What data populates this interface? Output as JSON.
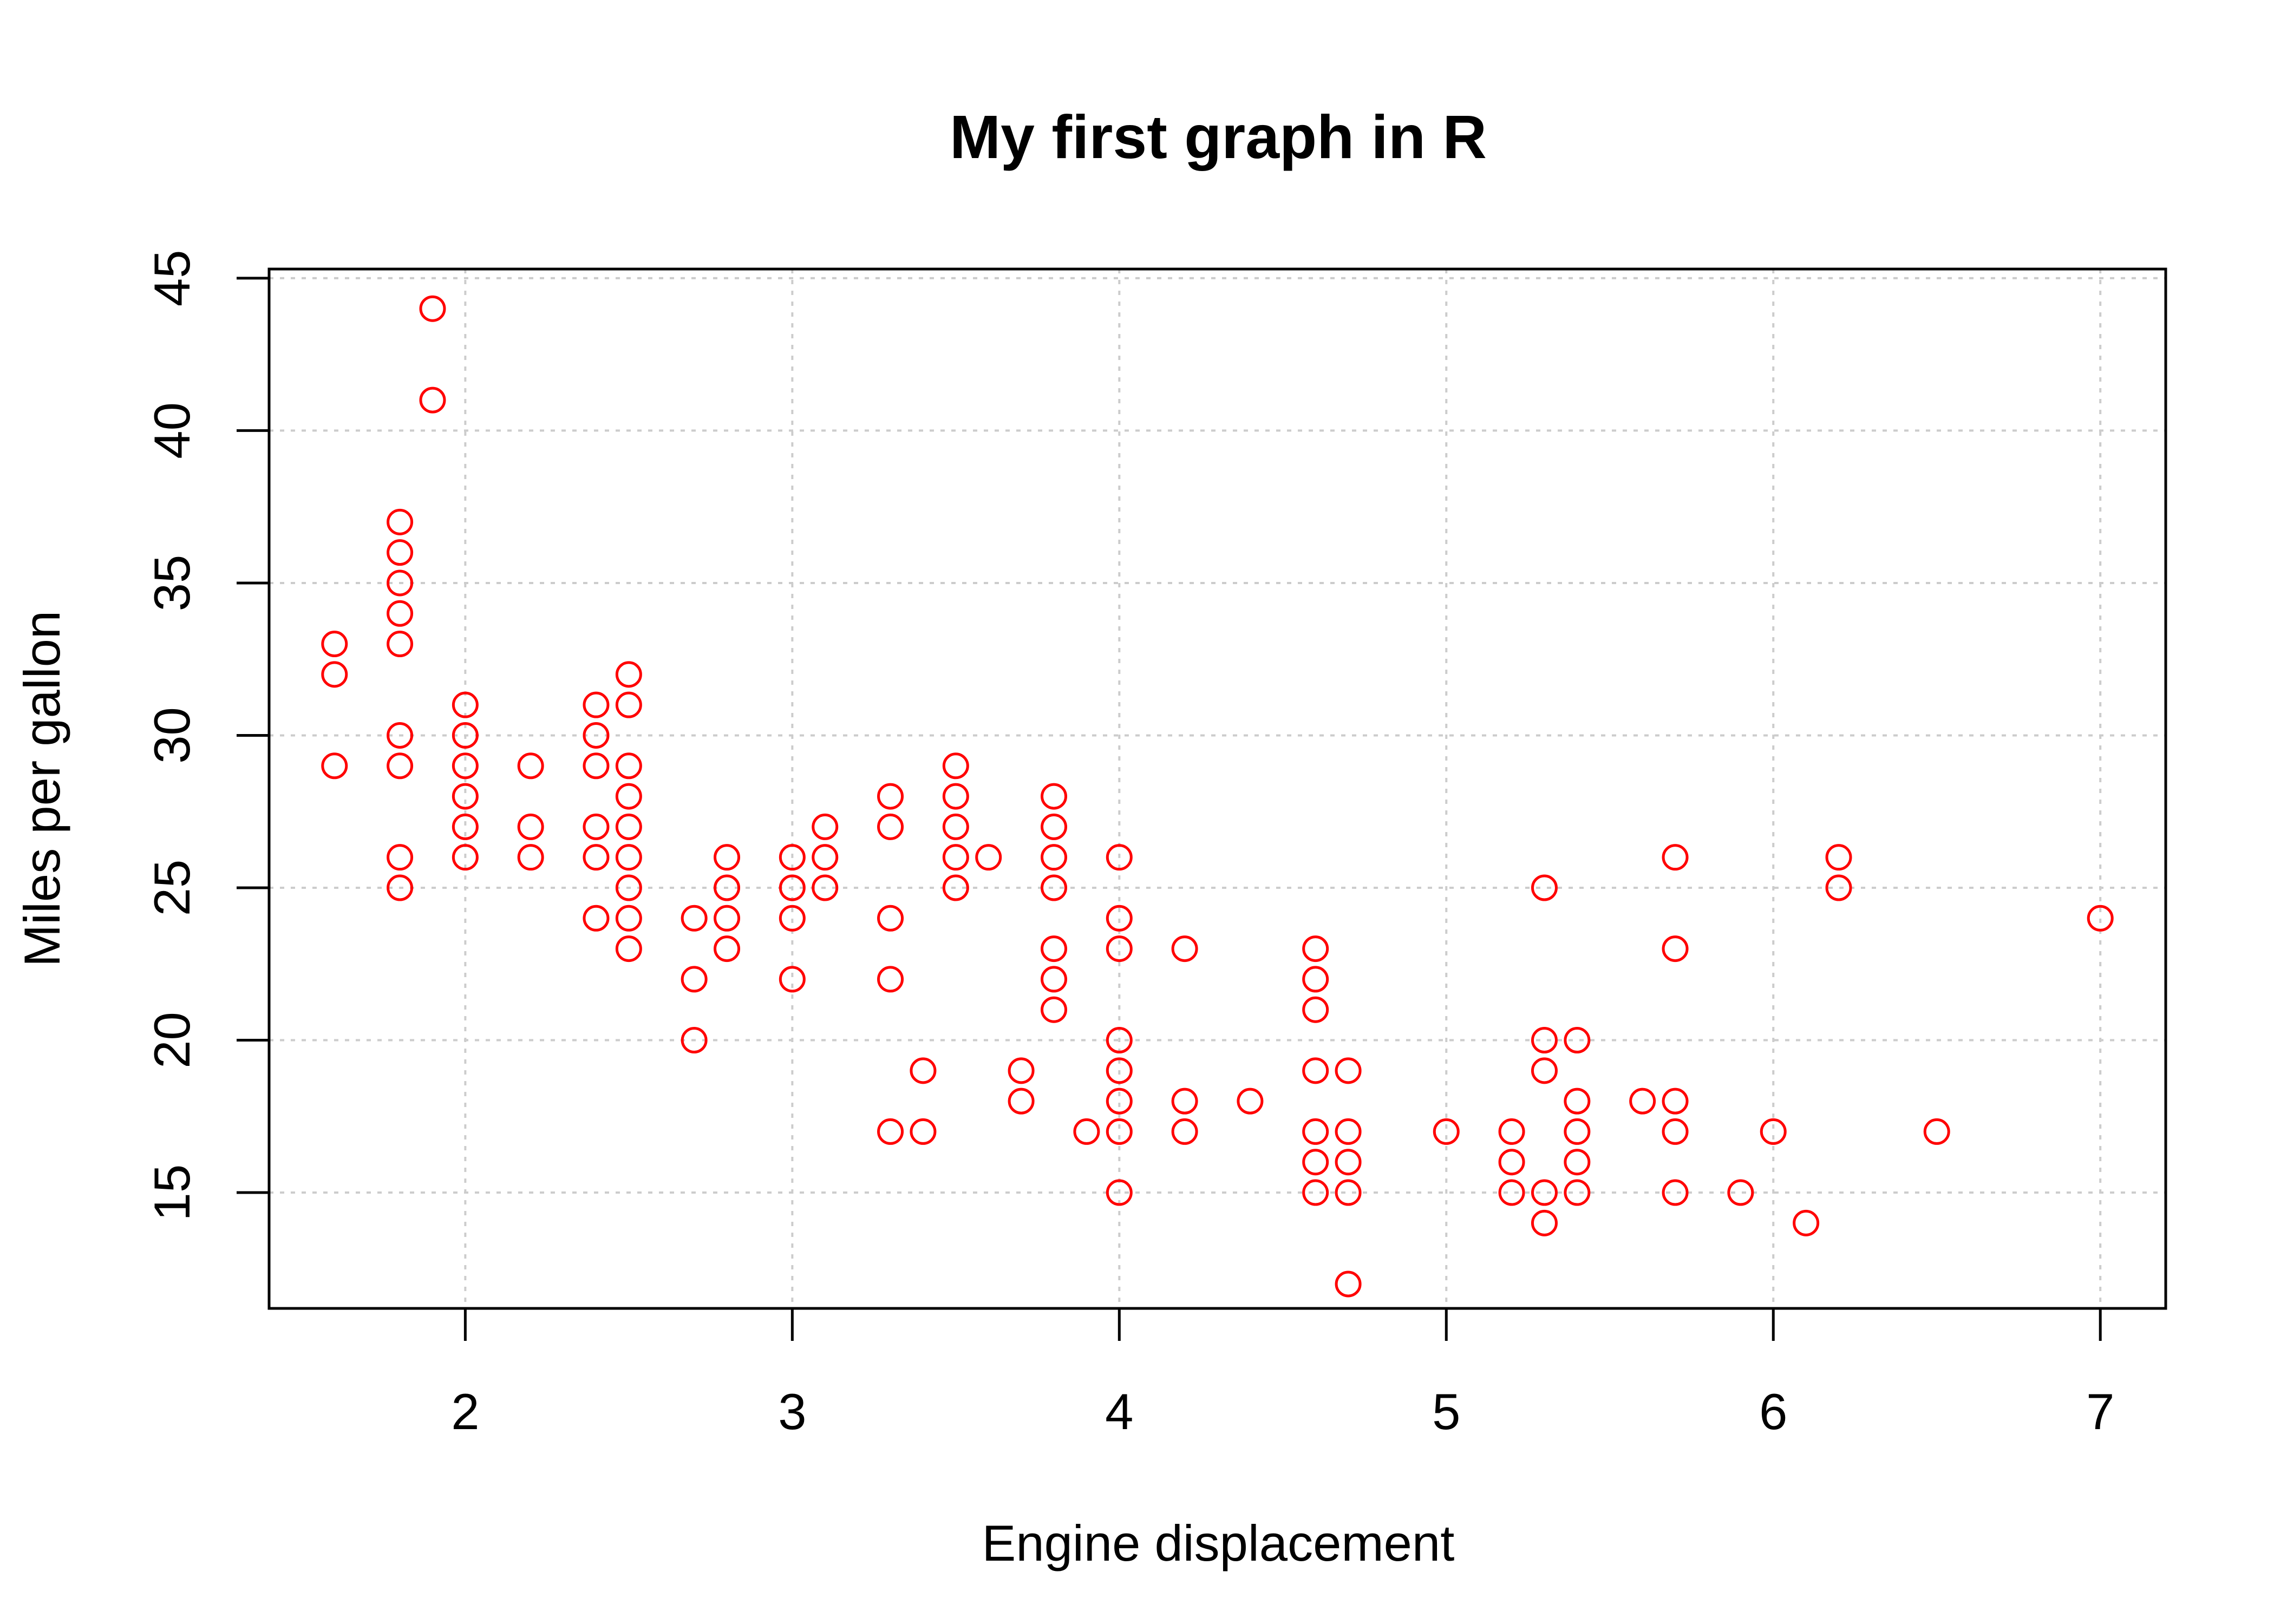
{
  "chart_data": {
    "type": "scatter",
    "title": "My first graph in R",
    "xlabel": "Engine displacement",
    "ylabel": "Miles per gallon",
    "xlim": [
      1.4,
      7.2
    ],
    "ylim": [
      11.2,
      45.3
    ],
    "x_ticks": [
      2,
      3,
      4,
      5,
      6,
      7
    ],
    "y_ticks": [
      15,
      20,
      25,
      30,
      35,
      40,
      45
    ],
    "grid": true,
    "grid_style": "dotted",
    "marker": "open-circle",
    "colors": {
      "points": "#ff0000",
      "grid": "#cccccc",
      "axes": "#000000"
    },
    "points": [
      [
        1.6,
        33
      ],
      [
        1.6,
        32
      ],
      [
        1.6,
        29
      ],
      [
        1.8,
        37
      ],
      [
        1.8,
        36
      ],
      [
        1.8,
        35
      ],
      [
        1.8,
        34
      ],
      [
        1.8,
        33
      ],
      [
        1.8,
        30
      ],
      [
        1.8,
        29
      ],
      [
        1.8,
        26
      ],
      [
        1.8,
        25
      ],
      [
        1.9,
        44
      ],
      [
        1.9,
        41
      ],
      [
        2.0,
        31
      ],
      [
        2.0,
        30
      ],
      [
        2.0,
        29
      ],
      [
        2.0,
        28
      ],
      [
        2.0,
        27
      ],
      [
        2.0,
        26
      ],
      [
        2.2,
        29
      ],
      [
        2.2,
        27
      ],
      [
        2.2,
        26
      ],
      [
        2.4,
        31
      ],
      [
        2.4,
        30
      ],
      [
        2.4,
        29
      ],
      [
        2.4,
        27
      ],
      [
        2.4,
        26
      ],
      [
        2.4,
        24
      ],
      [
        2.5,
        32
      ],
      [
        2.5,
        31
      ],
      [
        2.5,
        29
      ],
      [
        2.5,
        28
      ],
      [
        2.5,
        27
      ],
      [
        2.5,
        26
      ],
      [
        2.5,
        25
      ],
      [
        2.5,
        24
      ],
      [
        2.5,
        23
      ],
      [
        2.7,
        24
      ],
      [
        2.7,
        22
      ],
      [
        2.7,
        20
      ],
      [
        2.8,
        26
      ],
      [
        2.8,
        25
      ],
      [
        2.8,
        24
      ],
      [
        2.8,
        23
      ],
      [
        3.0,
        26
      ],
      [
        3.0,
        25
      ],
      [
        3.0,
        24
      ],
      [
        3.0,
        22
      ],
      [
        3.1,
        27
      ],
      [
        3.1,
        26
      ],
      [
        3.1,
        25
      ],
      [
        3.3,
        28
      ],
      [
        3.3,
        27
      ],
      [
        3.3,
        24
      ],
      [
        3.3,
        22
      ],
      [
        3.3,
        17
      ],
      [
        3.4,
        19
      ],
      [
        3.4,
        17
      ],
      [
        3.5,
        29
      ],
      [
        3.5,
        28
      ],
      [
        3.5,
        27
      ],
      [
        3.5,
        26
      ],
      [
        3.5,
        25
      ],
      [
        3.6,
        26
      ],
      [
        3.7,
        19
      ],
      [
        3.7,
        18
      ],
      [
        3.8,
        28
      ],
      [
        3.8,
        27
      ],
      [
        3.8,
        26
      ],
      [
        3.8,
        25
      ],
      [
        3.8,
        23
      ],
      [
        3.8,
        22
      ],
      [
        3.8,
        21
      ],
      [
        3.9,
        17
      ],
      [
        4.0,
        26
      ],
      [
        4.0,
        24
      ],
      [
        4.0,
        23
      ],
      [
        4.0,
        20
      ],
      [
        4.0,
        19
      ],
      [
        4.0,
        18
      ],
      [
        4.0,
        17
      ],
      [
        4.0,
        15
      ],
      [
        4.2,
        23
      ],
      [
        4.2,
        18
      ],
      [
        4.2,
        17
      ],
      [
        4.4,
        18
      ],
      [
        4.6,
        23
      ],
      [
        4.6,
        22
      ],
      [
        4.6,
        21
      ],
      [
        4.6,
        19
      ],
      [
        4.6,
        17
      ],
      [
        4.6,
        16
      ],
      [
        4.6,
        15
      ],
      [
        4.7,
        19
      ],
      [
        4.7,
        17
      ],
      [
        4.7,
        16
      ],
      [
        4.7,
        15
      ],
      [
        4.7,
        12
      ],
      [
        5.0,
        17
      ],
      [
        5.2,
        17
      ],
      [
        5.2,
        16
      ],
      [
        5.2,
        15
      ],
      [
        5.3,
        25
      ],
      [
        5.3,
        20
      ],
      [
        5.3,
        19
      ],
      [
        5.3,
        15
      ],
      [
        5.3,
        14
      ],
      [
        5.4,
        20
      ],
      [
        5.4,
        18
      ],
      [
        5.4,
        17
      ],
      [
        5.4,
        16
      ],
      [
        5.4,
        15
      ],
      [
        5.6,
        18
      ],
      [
        5.7,
        26
      ],
      [
        5.7,
        23
      ],
      [
        5.7,
        18
      ],
      [
        5.7,
        17
      ],
      [
        5.7,
        15
      ],
      [
        5.9,
        15
      ],
      [
        6.0,
        17
      ],
      [
        6.1,
        14
      ],
      [
        6.2,
        26
      ],
      [
        6.2,
        25
      ],
      [
        6.5,
        17
      ],
      [
        7.0,
        24
      ]
    ]
  }
}
